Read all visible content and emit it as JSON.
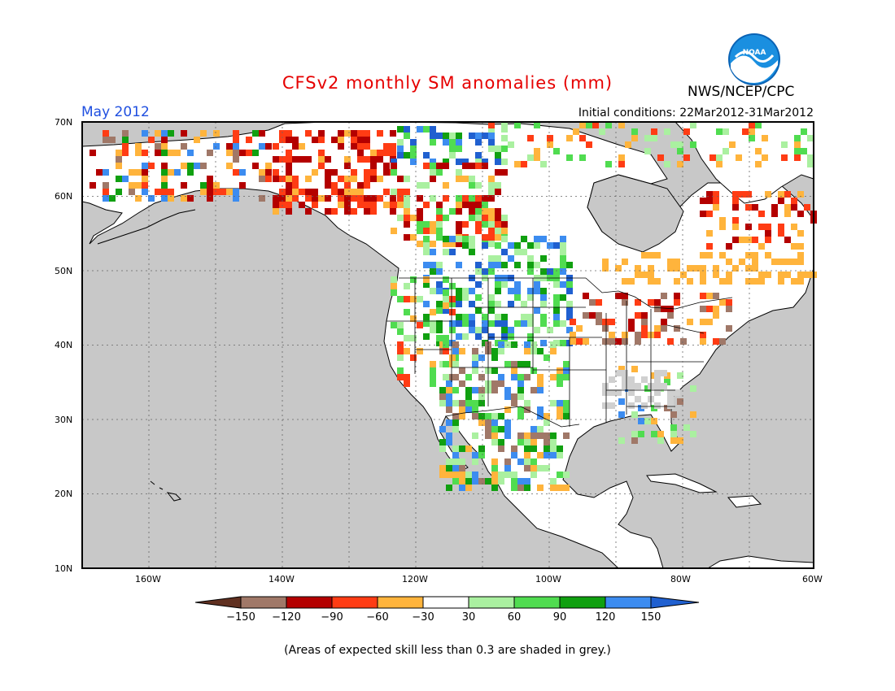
{
  "header": {
    "title": "CFSv2 monthly SM anomalies (mm)",
    "agency": "NWS/NCEP/CPC",
    "logo_text": "NOAA",
    "target_month": "May 2012",
    "initial_conditions": "Initial conditions: 22Mar2012-31Mar2012"
  },
  "map": {
    "latitude_labels": [
      "70N",
      "60N",
      "50N",
      "40N",
      "30N",
      "20N",
      "10N"
    ],
    "longitude_labels": [
      "160W",
      "140W",
      "120W",
      "100W",
      "80W",
      "60W"
    ],
    "background_color": "#c8c8c8",
    "land_color": "#ffffff"
  },
  "colorbar": {
    "ticks": [
      "-150",
      "-120",
      "-90",
      "-60",
      "-30",
      "30",
      "60",
      "90",
      "120",
      "150"
    ],
    "colors": [
      "#603020",
      "#a07868",
      "#b40000",
      "#ff3c14",
      "#ffb43c",
      "#ffffff",
      "#aaf0a0",
      "#50dc50",
      "#10a010",
      "#3c8cf0",
      "#2060d0"
    ]
  },
  "footnote": "(Areas of expected skill less than 0.3 are shaded in grey.)"
}
